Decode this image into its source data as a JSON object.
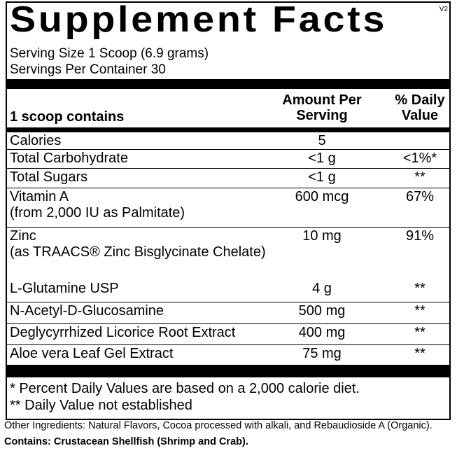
{
  "title": "Supplement Facts",
  "version": "V2",
  "serving_size": "Serving Size 1 Scoop (6.9 grams)",
  "servings_per_container": "Servings Per Container 30",
  "table": {
    "header": [
      "1 scoop contains",
      "Amount Per Serving",
      "% Daily Value"
    ],
    "groups": [
      [
        {
          "name": "Calories",
          "amount": "5"
        },
        {
          "name": "Total Carbohydrate",
          "amount": "<1 g",
          "dv": "<1%*"
        },
        {
          "name": "Total Sugars",
          "amount": "<1 g",
          "dv": "**"
        },
        {
          "name": "Vitamin A",
          "note": "(from 2,000 IU as Palmitate)",
          "amount": "600 mcg",
          "dv": "67%"
        },
        {
          "name": "Zinc",
          "note": "(as TRAACS® Zinc Bisglycinate Chelate)",
          "amount": "10 mg",
          "dv": "91%"
        }
      ],
      [
        {
          "name": "L-Glutamine USP",
          "amount": "4 g",
          "dv": "**"
        },
        {
          "name": "N-Acetyl-D-Glucosamine",
          "amount": "500 mg",
          "dv": "**"
        },
        {
          "name": "Deglycyrrhized Licorice Root Extract",
          "amount": "400 mg",
          "dv": "**"
        },
        {
          "name": "Aloe vera Leaf Gel Extract",
          "amount": "75 mg",
          "dv": "**"
        }
      ]
    ]
  },
  "footnotes": [
    "* Percent Daily Values are based on a 2,000 calorie diet.",
    "** Daily Value not established"
  ],
  "other_ingredients": "Other Ingredients: Natural Flavors, Cocoa processed with alkali, and Rebaudioside A (Organic).",
  "contains": "Contains: Crustacean Shellfish (Shrimp and Crab)."
}
